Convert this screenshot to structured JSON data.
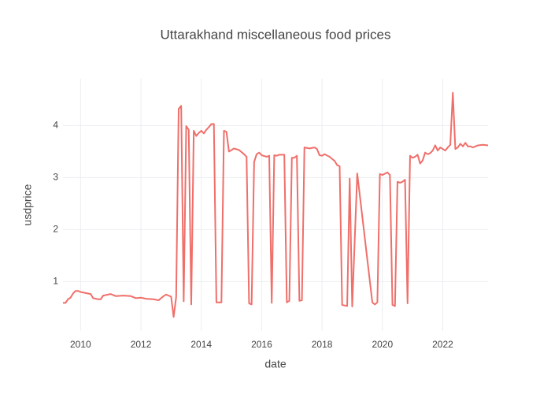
{
  "chart_data": {
    "type": "line",
    "title": "Uttarakhand miscellaneous food prices",
    "x_label": "date",
    "y_label": "usdprice",
    "color": "#ef6f6a",
    "grid": true,
    "x": [
      "2009-06",
      "2009-07",
      "2009-08",
      "2009-09",
      "2009-10",
      "2009-11",
      "2009-12",
      "2010-01",
      "2010-03",
      "2010-05",
      "2010-06",
      "2010-08",
      "2010-09",
      "2010-10",
      "2011-01",
      "2011-03",
      "2011-06",
      "2011-09",
      "2011-11",
      "2012-01",
      "2012-03",
      "2012-06",
      "2012-08",
      "2012-10",
      "2012-11",
      "2012-12",
      "2013-01",
      "2013-02",
      "2013-03",
      "2013-04",
      "2013-05",
      "2013-06",
      "2013-07",
      "2013-08",
      "2013-09",
      "2013-10",
      "2013-11",
      "2013-12",
      "2014-01",
      "2014-02",
      "2014-03",
      "2014-04",
      "2014-05",
      "2014-06",
      "2014-07",
      "2014-09",
      "2014-10",
      "2014-11",
      "2014-12",
      "2015-01",
      "2015-02",
      "2015-04",
      "2015-06",
      "2015-07",
      "2015-08",
      "2015-09",
      "2015-10",
      "2015-11",
      "2015-12",
      "2016-01",
      "2016-03",
      "2016-04",
      "2016-05",
      "2016-06",
      "2016-07",
      "2016-08",
      "2016-10",
      "2016-11",
      "2016-12",
      "2017-01",
      "2017-02",
      "2017-03",
      "2017-04",
      "2017-05",
      "2017-06",
      "2017-08",
      "2017-10",
      "2017-11",
      "2017-12",
      "2018-01",
      "2018-02",
      "2018-04",
      "2018-06",
      "2018-07",
      "2018-08",
      "2018-09",
      "2018-11",
      "2018-12",
      "2019-01",
      "2019-03",
      "2019-09",
      "2019-10",
      "2019-11",
      "2019-12",
      "2020-01",
      "2020-03",
      "2020-04",
      "2020-05",
      "2020-06",
      "2020-07",
      "2020-08",
      "2020-09",
      "2020-10",
      "2020-11",
      "2020-12",
      "2021-01",
      "2021-02",
      "2021-03",
      "2021-04",
      "2021-05",
      "2021-06",
      "2021-07",
      "2021-08",
      "2021-09",
      "2021-10",
      "2021-11",
      "2021-12",
      "2022-01",
      "2022-02",
      "2022-03",
      "2022-04",
      "2022-05",
      "2022-06",
      "2022-07",
      "2022-08",
      "2022-09",
      "2022-10",
      "2022-11",
      "2022-12",
      "2023-01",
      "2023-03",
      "2023-05",
      "2023-07"
    ],
    "values": [
      0.59,
      0.59,
      0.66,
      0.69,
      0.77,
      0.82,
      0.82,
      0.8,
      0.78,
      0.76,
      0.68,
      0.66,
      0.66,
      0.73,
      0.76,
      0.72,
      0.73,
      0.72,
      0.68,
      0.69,
      0.67,
      0.66,
      0.64,
      0.72,
      0.75,
      0.73,
      0.71,
      0.32,
      0.7,
      4.32,
      4.38,
      0.62,
      3.99,
      3.92,
      0.56,
      3.9,
      3.8,
      3.86,
      3.9,
      3.85,
      3.92,
      3.97,
      4.03,
      4.03,
      0.6,
      0.6,
      3.9,
      3.88,
      3.5,
      3.53,
      3.56,
      3.53,
      3.45,
      3.4,
      0.58,
      0.56,
      3.3,
      3.45,
      3.48,
      3.43,
      3.4,
      3.42,
      0.59,
      3.43,
      3.42,
      3.44,
      3.44,
      0.6,
      0.63,
      3.38,
      3.38,
      3.42,
      0.63,
      0.64,
      3.58,
      3.56,
      3.58,
      3.55,
      3.43,
      3.42,
      3.45,
      3.4,
      3.32,
      3.24,
      3.22,
      0.55,
      0.53,
      2.98,
      0.52,
      3.08,
      0.6,
      0.56,
      0.6,
      3.07,
      3.05,
      3.1,
      3.05,
      0.55,
      0.53,
      2.92,
      2.9,
      2.92,
      2.96,
      0.58,
      3.42,
      3.38,
      3.4,
      3.44,
      3.27,
      3.33,
      3.48,
      3.45,
      3.47,
      3.52,
      3.62,
      3.52,
      3.58,
      3.55,
      3.52,
      3.58,
      3.63,
      4.63,
      3.55,
      3.58,
      3.65,
      3.6,
      3.67,
      3.6,
      3.6,
      3.58,
      3.62,
      3.63,
      3.62
    ],
    "xlim": [
      "2009-06",
      "2023-07"
    ],
    "xticks": [
      2010,
      2012,
      2014,
      2016,
      2018,
      2020,
      2022
    ],
    "ylim": [
      0.05,
      4.9
    ],
    "yticks": [
      1,
      2,
      3,
      4
    ]
  }
}
